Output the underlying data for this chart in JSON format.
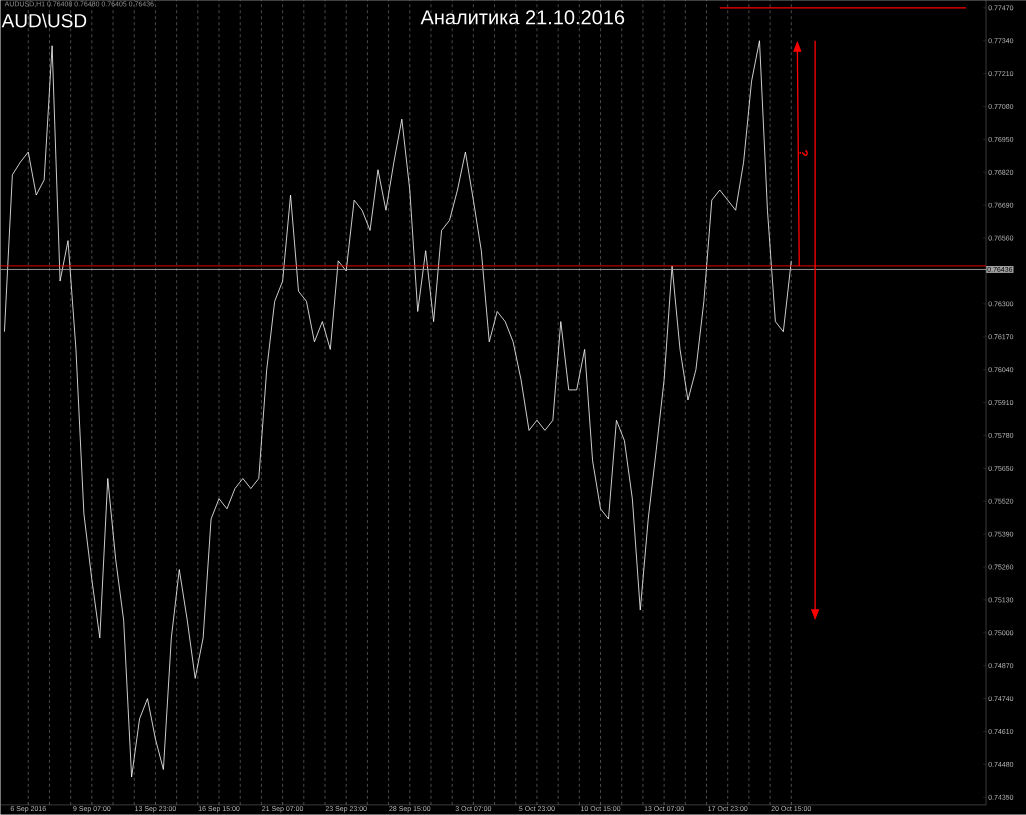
{
  "chart_data": {
    "type": "line",
    "title": "Аналитика 21.10.2016",
    "annotations": [
      "AUDUSD,H1  0.76408 0.76480 0.76405 0.76436",
      "AUD\\USD",
      "?"
    ],
    "categories": [
      null,
      null,
      null,
      "6 Sep 2016",
      null,
      null,
      null,
      null,
      null,
      null,
      null,
      "9 Sep 07:00",
      null,
      null,
      null,
      null,
      null,
      null,
      null,
      "13 Sep 23:00",
      null,
      null,
      null,
      null,
      null,
      null,
      null,
      "16 Sep 15:00",
      null,
      null,
      null,
      null,
      null,
      null,
      null,
      "21 Sep 07:00",
      null,
      null,
      null,
      null,
      null,
      null,
      null,
      "23 Sep 23:00",
      null,
      null,
      null,
      null,
      null,
      null,
      null,
      "28 Sep 15:00",
      null,
      null,
      null,
      null,
      null,
      null,
      null,
      "3 Oct 07:00",
      null,
      null,
      null,
      null,
      null,
      null,
      null,
      "5 Oct 23:00",
      null,
      null,
      null,
      null,
      null,
      null,
      null,
      "10 Oct 15:00",
      null,
      null,
      null,
      null,
      null,
      null,
      null,
      "13 Oct 07:00",
      null,
      null,
      null,
      null,
      null,
      null,
      null,
      "17 Oct 23:00",
      null,
      null,
      null,
      null,
      null,
      null,
      null,
      "20 Oct 15:00",
      null,
      null,
      null,
      null,
      null,
      null,
      null,
      null,
      null,
      null,
      null,
      null,
      null,
      null,
      null,
      null,
      null,
      null,
      null,
      null,
      null,
      null,
      null,
      null
    ],
    "ylim": [
      0.7432,
      0.775
    ],
    "yticks": [
      {
        "value": 0.7435,
        "label": "0.74350"
      },
      {
        "value": 0.7448,
        "label": "0.74480"
      },
      {
        "value": 0.7461,
        "label": "0.74610"
      },
      {
        "value": 0.7474,
        "label": "0.74740"
      },
      {
        "value": 0.7487,
        "label": "0.74870"
      },
      {
        "value": 0.75,
        "label": "0.75000"
      },
      {
        "value": 0.7513,
        "label": "0.75130"
      },
      {
        "value": 0.7526,
        "label": "0.75260"
      },
      {
        "value": 0.7539,
        "label": "0.75390"
      },
      {
        "value": 0.7552,
        "label": "0.75520"
      },
      {
        "value": 0.7565,
        "label": "0.75650"
      },
      {
        "value": 0.7578,
        "label": "0.75780"
      },
      {
        "value": 0.7591,
        "label": "0.75910"
      },
      {
        "value": 0.7604,
        "label": "0.76040"
      },
      {
        "value": 0.7617,
        "label": "0.76170"
      },
      {
        "value": 0.763,
        "label": "0.76300"
      },
      {
        "value": 0.7656,
        "label": "0.76560"
      },
      {
        "value": 0.7669,
        "label": "0.76690"
      },
      {
        "value": 0.7682,
        "label": "0.76820"
      },
      {
        "value": 0.7695,
        "label": "0.76950"
      },
      {
        "value": 0.7708,
        "label": "0.77080"
      },
      {
        "value": 0.7721,
        "label": "0.77210"
      },
      {
        "value": 0.7734,
        "label": "0.77340"
      },
      {
        "value": 0.7747,
        "label": "0.77470"
      }
    ],
    "grid": "x",
    "ref_lines": [
      {
        "axis": "y",
        "value": 0.7645,
        "color": "#ff0000"
      },
      {
        "axis": "y",
        "value": 0.76436,
        "label": "0.76436",
        "color": "#a0a0a0"
      }
    ],
    "series": [
      {
        "color": "#ffffff",
        "values": [
          0.7619,
          0.7681,
          0.7686,
          0.769,
          0.7673,
          0.7679,
          0.7732,
          0.7639,
          0.7655,
          0.7612,
          0.7547,
          0.7521,
          0.7498,
          0.7561,
          0.7529,
          0.7505,
          0.7443,
          0.7466,
          0.7474,
          0.7458,
          0.7446,
          0.7498,
          0.7525,
          0.7505,
          0.7482,
          0.7498,
          0.7545,
          0.7553,
          0.7549,
          0.7557,
          0.7561,
          0.7557,
          0.7561,
          0.7604,
          0.7631,
          0.7639,
          0.7673,
          0.7635,
          0.7631,
          0.7615,
          0.7623,
          0.7612,
          0.7647,
          0.7643,
          0.7671,
          0.7667,
          0.7659,
          0.7683,
          0.7667,
          0.7686,
          0.7703,
          0.7675,
          0.7627,
          0.7651,
          0.7623,
          0.7659,
          0.7663,
          0.7675,
          0.769,
          0.7671,
          0.7651,
          0.7615,
          0.7627,
          0.7623,
          0.7615,
          0.76,
          0.758,
          0.7584,
          0.758,
          0.7584,
          0.7623,
          0.7596,
          0.7596,
          0.7612,
          0.7568,
          0.7549,
          0.7545,
          0.7584,
          0.7576,
          0.7553,
          0.7509,
          0.7545,
          0.7572,
          0.76,
          0.7645,
          0.7612,
          0.7592,
          0.7604,
          0.7631,
          0.7671,
          0.7675,
          0.7671,
          0.7667,
          0.7686,
          0.7718,
          0.7734,
          0.7667,
          0.7623,
          0.7619,
          0.7647,
          null,
          null,
          null,
          null,
          null,
          null,
          null,
          null,
          null,
          null,
          null,
          null,
          null,
          null,
          null,
          null,
          null,
          null,
          null,
          null,
          null,
          null,
          null,
          null
        ]
      },
      {
        "color": "#ff0000",
        "values": [
          null,
          null,
          null,
          null,
          null,
          null,
          null,
          null,
          null,
          null,
          null,
          null,
          null,
          null,
          null,
          null,
          null,
          null,
          null,
          null,
          null,
          null,
          null,
          null,
          null,
          null,
          null,
          null,
          null,
          null,
          null,
          null,
          null,
          null,
          null,
          null,
          null,
          null,
          null,
          null,
          null,
          null,
          null,
          null,
          null,
          null,
          null,
          null,
          null,
          null,
          null,
          null,
          null,
          null,
          null,
          null,
          null,
          null,
          null,
          null,
          null,
          null,
          null,
          null,
          null,
          null,
          null,
          null,
          null,
          null,
          null,
          null,
          null,
          null,
          null,
          null,
          null,
          null,
          null,
          null,
          null,
          null,
          null,
          null,
          null,
          null,
          null,
          null,
          null,
          null,
          0.7747,
          0.7747,
          0.7747,
          0.7747,
          0.7747,
          0.7747,
          0.7747,
          0.7747,
          0.7747,
          0.7747,
          0.7747,
          0.7747,
          0.7747,
          0.7747,
          0.7747,
          0.7747,
          0.7747,
          0.7747,
          0.7747,
          0.7747,
          0.7747,
          0.7747,
          0.7747,
          0.7747,
          0.7747,
          0.7747,
          0.7747,
          0.7747,
          0.7747,
          0.7747,
          0.7747,
          0.7747,
          null,
          null
        ]
      }
    ]
  }
}
